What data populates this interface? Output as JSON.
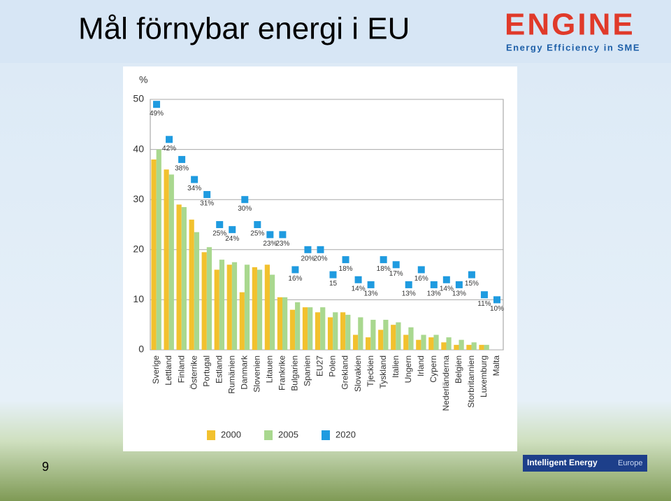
{
  "logo": "ENGINE",
  "logo_tagline": "Energy Efficiency in SME",
  "page_number": "9",
  "footer_logo": "Intelligent Energy",
  "footer_logo_region": "Europe",
  "chart_data": {
    "type": "bar",
    "title": "Mål förnybar energi i EU",
    "y_label": "%",
    "categories": [
      "Sverige",
      "Lettland",
      "Finland",
      "Österrike",
      "Portugal",
      "Estland",
      "Rumänien",
      "Danmark",
      "Slovenien",
      "Litauen",
      "Frankrike",
      "Bulgarien",
      "Spanien",
      "EU27",
      "Polen",
      "Grekland",
      "Slovakien",
      "Tjeckien",
      "Tyskland",
      "Italien",
      "Ungern",
      "Irland",
      "Cypern",
      "Nederländerna",
      "Belgien",
      "Storbritannien",
      "Luxemburg",
      "Malta"
    ],
    "series": [
      {
        "name": "2000",
        "color": "#f2c12e",
        "values": [
          38,
          36,
          29,
          26,
          19.5,
          16,
          17,
          11.5,
          16.5,
          17,
          10.5,
          8,
          8.5,
          7.5,
          6.5,
          7.5,
          3,
          2.5,
          4,
          5,
          3,
          2,
          2.5,
          1.5,
          1,
          1,
          1,
          0
        ]
      },
      {
        "name": "2005",
        "color": "#a9d88f",
        "values": [
          40,
          35,
          28.5,
          23.5,
          20.5,
          18,
          17.5,
          17,
          16,
          15,
          10.5,
          9.5,
          8.5,
          8.5,
          7.5,
          7,
          6.5,
          6,
          6,
          5.5,
          4.5,
          3,
          3,
          2.5,
          2,
          1.5,
          1,
          0
        ]
      },
      {
        "name": "2020",
        "color": "#1f9be0",
        "values": [
          49,
          42,
          38,
          34,
          31,
          25,
          24,
          30,
          25,
          23,
          23,
          16,
          20,
          20,
          15,
          18,
          14,
          13,
          18,
          17,
          13,
          16,
          13,
          14,
          13,
          15,
          11,
          10
        ],
        "value_labels": [
          "49%",
          "42%",
          "38%",
          "34%",
          "31%",
          "25%",
          "24%",
          "30%",
          "25%",
          "23%",
          "23%",
          "16%",
          "20%",
          "20%",
          "15",
          "18%",
          "14%",
          "13%",
          "18%",
          "17%",
          "13%",
          "16%",
          "13%",
          "14%",
          "13%",
          "15%",
          "11%",
          "10%"
        ]
      }
    ],
    "ylim": [
      0,
      50
    ],
    "yticks": [
      0,
      10,
      20,
      30,
      40,
      50
    ],
    "grid": true
  }
}
